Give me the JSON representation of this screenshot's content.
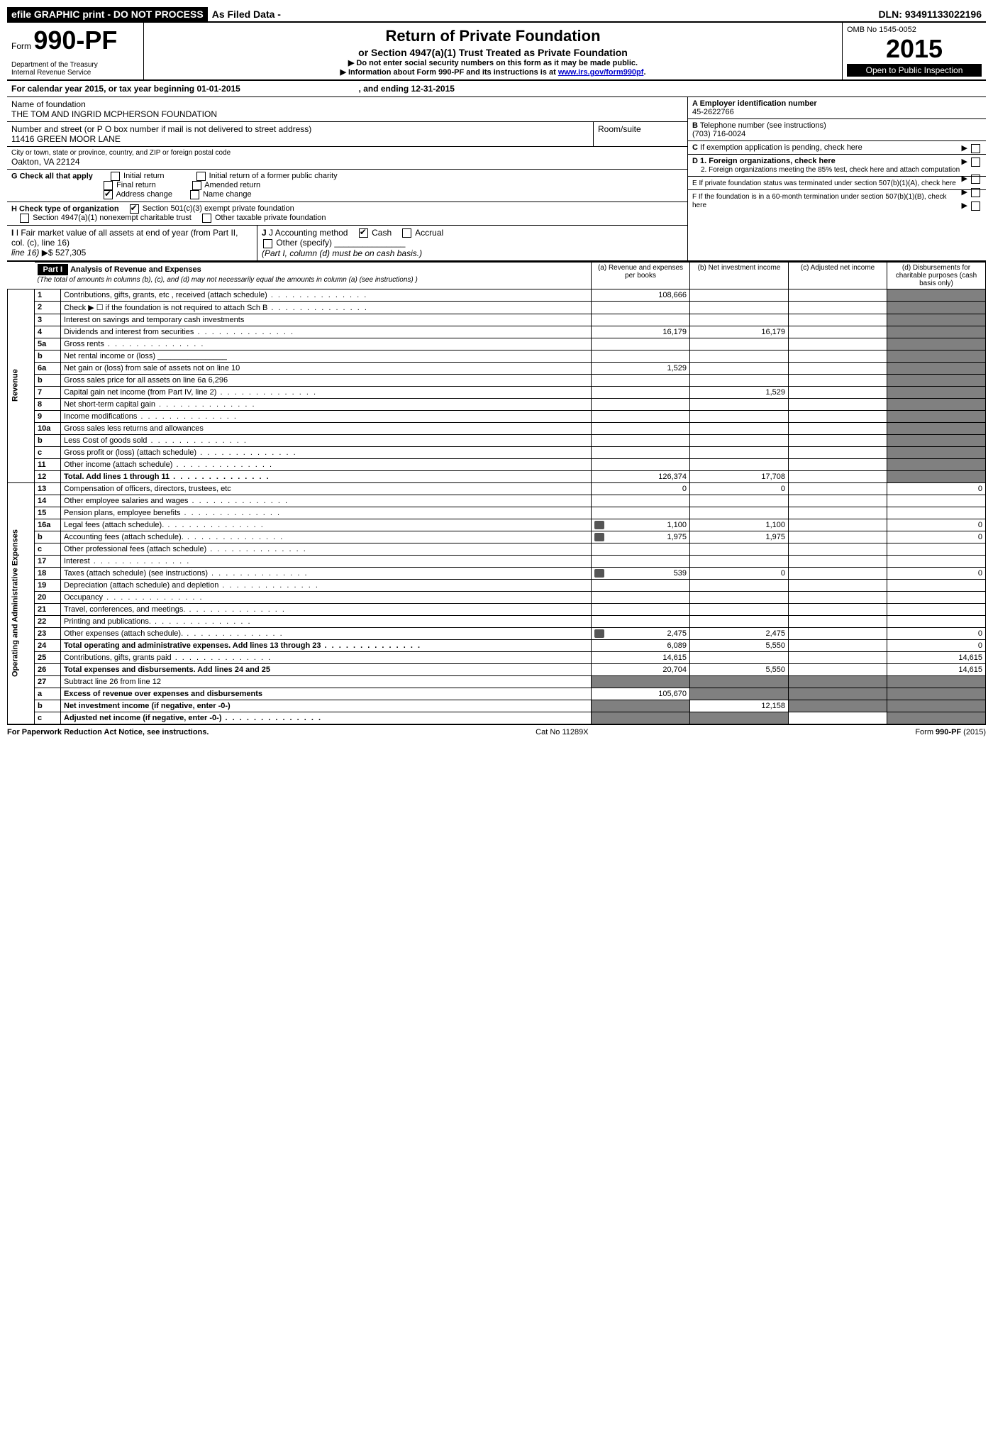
{
  "topbar": {
    "efile": "efile GRAPHIC print - DO NOT PROCESS",
    "asfiled": "As Filed Data -",
    "dln_label": "DLN:",
    "dln": "93491133022196"
  },
  "header": {
    "form_prefix": "Form",
    "form_number": "990-PF",
    "dept": "Department of the Treasury",
    "irs": "Internal Revenue Service",
    "title": "Return of Private Foundation",
    "subtitle": "or Section 4947(a)(1) Trust Treated as Private Foundation",
    "note1": "▶ Do not enter social security numbers on this form as it may be made public.",
    "note2_pre": "▶ Information about Form 990-PF and its instructions is at ",
    "note2_link": "www.irs.gov/form990pf",
    "omb": "OMB No 1545-0052",
    "year": "2015",
    "open": "Open to Public Inspection"
  },
  "calendar": {
    "pre": "For calendar year 2015, or tax year beginning ",
    "begin": "01-01-2015",
    "mid": " , and ending ",
    "end": "12-31-2015"
  },
  "foundation": {
    "name_label": "Name of foundation",
    "name": "THE TOM AND INGRID MCPHERSON FOUNDATION",
    "addr_label": "Number and street (or P O box number if mail is not delivered to street address)",
    "addr": "11416 GREEN MOOR LANE",
    "room_label": "Room/suite",
    "city_label": "City or town, state or province, country, and ZIP or foreign postal code",
    "city": "Oakton, VA 22124"
  },
  "right": {
    "a_label": "A Employer identification number",
    "a_val": "45-2622766",
    "b_label": "B Telephone number (see instructions)",
    "b_val": "(703) 716-0024",
    "c_label": "C If exemption application is pending, check here",
    "d1_label": "D 1. Foreign organizations, check here",
    "d2_label": "2. Foreign organizations meeting the 85% test, check here and attach computation",
    "e_label": "E If private foundation status was terminated under section 507(b)(1)(A), check here",
    "f_label": "F If the foundation is in a 60-month termination under section 507(b)(1)(B), check here"
  },
  "g": {
    "label": "G Check all that apply",
    "opts": [
      "Initial return",
      "Final return",
      "Address change",
      "Initial return of a former public charity",
      "Amended return",
      "Name change"
    ]
  },
  "h": {
    "label": "H Check type of organization",
    "opt1": "Section 501(c)(3) exempt private foundation",
    "opt2": "Section 4947(a)(1) nonexempt charitable trust",
    "opt3": "Other taxable private foundation"
  },
  "i": {
    "label": "I Fair market value of all assets at end of year (from Part II, col. (c), line 16)",
    "arrow": "▶$",
    "val": "527,305"
  },
  "j": {
    "label": "J Accounting method",
    "cash": "Cash",
    "accrual": "Accrual",
    "other": "Other (specify)",
    "note": "(Part I, column (d) must be on cash basis.)"
  },
  "part1": {
    "tag": "Part I",
    "title": "Analysis of Revenue and Expenses",
    "sub": "(The total of amounts in columns (b), (c), and (d) may not necessarily equal the amounts in column (a) (see instructions) )",
    "cols": {
      "a": "(a) Revenue and expenses per books",
      "b": "(b) Net investment income",
      "c": "(c) Adjusted net income",
      "d": "(d) Disbursements for charitable purposes (cash basis only)"
    }
  },
  "sections": {
    "revenue": "Revenue",
    "opex": "Operating and Administrative Expenses"
  },
  "lines": [
    {
      "no": "1",
      "desc": "Contributions, gifts, grants, etc , received (attach schedule)",
      "a": "108,666",
      "dots": true
    },
    {
      "no": "2",
      "desc": "Check ▶ ☐ if the foundation is not required to attach Sch B",
      "dots": true
    },
    {
      "no": "3",
      "desc": "Interest on savings and temporary cash investments"
    },
    {
      "no": "4",
      "desc": "Dividends and interest from securities",
      "a": "16,179",
      "b": "16,179",
      "dots": true
    },
    {
      "no": "5a",
      "desc": "Gross rents",
      "dots": true
    },
    {
      "no": "b",
      "desc": "Net rental income or (loss) ________________"
    },
    {
      "no": "6a",
      "desc": "Net gain or (loss) from sale of assets not on line 10",
      "a": "1,529"
    },
    {
      "no": "b",
      "desc": "Gross sales price for all assets on line 6a            6,296"
    },
    {
      "no": "7",
      "desc": "Capital gain net income (from Part IV, line 2)",
      "b": "1,529",
      "dots": true
    },
    {
      "no": "8",
      "desc": "Net short-term capital gain",
      "dots": true
    },
    {
      "no": "9",
      "desc": "Income modifications",
      "dots": true
    },
    {
      "no": "10a",
      "desc": "Gross sales less returns and allowances"
    },
    {
      "no": "b",
      "desc": "Less  Cost of goods sold",
      "dots": true
    },
    {
      "no": "c",
      "desc": "Gross profit or (loss) (attach schedule)",
      "dots": true
    },
    {
      "no": "11",
      "desc": "Other income (attach schedule)",
      "dots": true
    },
    {
      "no": "12",
      "desc": "Total. Add lines 1 through 11",
      "a": "126,374",
      "b": "17,708",
      "bold": true,
      "dots": true
    },
    {
      "no": "13",
      "desc": "Compensation of officers, directors, trustees, etc",
      "a": "0",
      "b": "0",
      "d": "0"
    },
    {
      "no": "14",
      "desc": "Other employee salaries and wages",
      "dots": true
    },
    {
      "no": "15",
      "desc": "Pension plans, employee benefits",
      "dots": true
    },
    {
      "no": "16a",
      "desc": "Legal fees (attach schedule).",
      "a": "1,100",
      "b": "1,100",
      "d": "0",
      "icon": true,
      "dots": true
    },
    {
      "no": "b",
      "desc": "Accounting fees (attach schedule).",
      "a": "1,975",
      "b": "1,975",
      "d": "0",
      "icon": true,
      "dots": true
    },
    {
      "no": "c",
      "desc": "Other professional fees (attach schedule)",
      "dots": true
    },
    {
      "no": "17",
      "desc": "Interest",
      "dots": true
    },
    {
      "no": "18",
      "desc": "Taxes (attach schedule) (see instructions)",
      "a": "539",
      "b": "0",
      "d": "0",
      "icon": true,
      "dots": true
    },
    {
      "no": "19",
      "desc": "Depreciation (attach schedule) and depletion",
      "dots": true
    },
    {
      "no": "20",
      "desc": "Occupancy",
      "dots": true
    },
    {
      "no": "21",
      "desc": "Travel, conferences, and meetings.",
      "dots": true
    },
    {
      "no": "22",
      "desc": "Printing and publications.",
      "dots": true
    },
    {
      "no": "23",
      "desc": "Other expenses (attach schedule).",
      "a": "2,475",
      "b": "2,475",
      "d": "0",
      "icon": true,
      "dots": true
    },
    {
      "no": "24",
      "desc": "Total operating and administrative expenses. Add lines 13 through 23",
      "a": "6,089",
      "b": "5,550",
      "d": "0",
      "bold": true,
      "dots": true
    },
    {
      "no": "25",
      "desc": "Contributions, gifts, grants paid",
      "a": "14,615",
      "d": "14,615",
      "dots": true
    },
    {
      "no": "26",
      "desc": "Total expenses and disbursements. Add lines 24 and 25",
      "a": "20,704",
      "b": "5,550",
      "d": "14,615",
      "bold": true
    },
    {
      "no": "27",
      "desc": "Subtract line 26 from line 12"
    },
    {
      "no": "a",
      "desc": "Excess of revenue over expenses and disbursements",
      "a": "105,670",
      "bold": true
    },
    {
      "no": "b",
      "desc": "Net investment income (if negative, enter -0-)",
      "b": "12,158",
      "bold": true
    },
    {
      "no": "c",
      "desc": "Adjusted net income (if negative, enter -0-)",
      "bold": true,
      "dots": true
    }
  ],
  "footer": {
    "left": "For Paperwork Reduction Act Notice, see instructions.",
    "mid": "Cat No 11289X",
    "right": "Form 990-PF (2015)"
  },
  "style": {
    "shade_color": "#808080",
    "col_widths": {
      "rot": 30,
      "no": 34,
      "desc": 560,
      "val": 130
    }
  }
}
